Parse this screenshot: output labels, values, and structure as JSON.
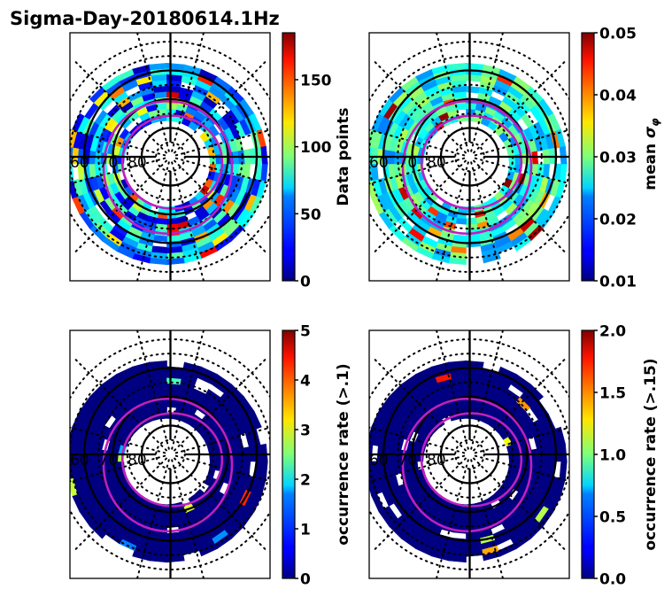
{
  "figure": {
    "title": "Sigma-Day-20180614.1Hz"
  },
  "chart_data": [
    {
      "type": "heatmap",
      "projection": "polar (magnetic latitude / MLT)",
      "title": "",
      "colormap": "jet",
      "colorbar": {
        "label": "Data points",
        "range": [
          0,
          185
        ],
        "ticks": [
          0,
          50,
          100,
          150
        ],
        "tick_labels": [
          "0",
          "50",
          "100",
          "150"
        ]
      },
      "latitude_labels": [
        "60",
        "70",
        "80"
      ],
      "latitude_circles": [
        60,
        70,
        80
      ],
      "dotted_circles": [
        50,
        55,
        65,
        75,
        85
      ],
      "oval_boundaries": "two magenta closed curves (auroral oval)",
      "coverage_band_mlat": [
        55,
        75
      ],
      "dominant_levels": "mostly 10-60 with some 100-185 cells"
    },
    {
      "type": "heatmap",
      "projection": "polar (magnetic latitude / MLT)",
      "title": "",
      "colormap": "jet",
      "colorbar": {
        "label": "mean σ_φ",
        "range": [
          0.01,
          0.05
        ],
        "ticks": [
          0.01,
          0.02,
          0.03,
          0.04,
          0.05
        ],
        "tick_labels": [
          "0.01",
          "0.02",
          "0.03",
          "0.04",
          "0.05"
        ]
      },
      "latitude_labels": [
        "60",
        "70",
        "80"
      ],
      "latitude_circles": [
        60,
        70,
        80
      ],
      "dotted_circles": [
        50,
        55,
        65,
        75,
        85
      ],
      "oval_boundaries": "two magenta closed curves (auroral oval)",
      "coverage_band_mlat": [
        55,
        75
      ],
      "dominant_levels": "mostly 0.02-0.03, isolated cells up to 0.05"
    },
    {
      "type": "heatmap",
      "projection": "polar (magnetic latitude / MLT)",
      "title": "",
      "colormap": "jet",
      "colorbar": {
        "label": "occurrence rate (>.1)",
        "range": [
          0,
          5
        ],
        "ticks": [
          0,
          1,
          2,
          3,
          4,
          5
        ],
        "tick_labels": [
          "0",
          "1",
          "2",
          "3",
          "4",
          "5"
        ]
      },
      "latitude_labels": [
        "60",
        "70",
        "80"
      ],
      "latitude_circles": [
        60,
        70,
        80
      ],
      "dotted_circles": [
        50,
        55,
        65,
        75,
        85
      ],
      "oval_boundaries": "two magenta closed curves (auroral oval)",
      "coverage_band_mlat": [
        55,
        75
      ],
      "dominant_levels": "mostly 0, few cells 1-5"
    },
    {
      "type": "heatmap",
      "projection": "polar (magnetic latitude / MLT)",
      "title": "",
      "colormap": "jet",
      "colorbar": {
        "label": "occurrence rate (>.15)",
        "range": [
          0,
          2
        ],
        "ticks": [
          0,
          0.5,
          1,
          1.5,
          2
        ],
        "tick_labels": [
          "0.0",
          "0.5",
          "1.0",
          "1.5",
          "2.0"
        ]
      },
      "latitude_labels": [
        "60",
        "70",
        "80"
      ],
      "latitude_circles": [
        60,
        70,
        80
      ],
      "dotted_circles": [
        50,
        55,
        65,
        75,
        85
      ],
      "oval_boundaries": "two magenta closed curves (auroral oval)",
      "coverage_band_mlat": [
        55,
        75
      ],
      "dominant_levels": "mostly 0, few cells up to 2"
    }
  ]
}
